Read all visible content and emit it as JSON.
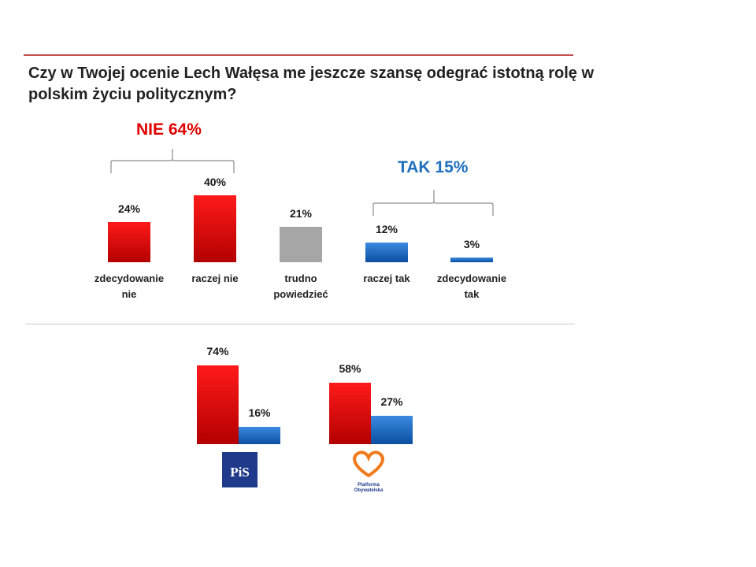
{
  "title": "Czy w Twojej ocenie Lech Wałęsa me jeszcze szansę odegrać istotną rolę w polskim życiu politycznym?",
  "groups": {
    "nie_label": "NIE 64%",
    "tak_label": "TAK 15%"
  },
  "colors": {
    "red": "#e00000",
    "blue": "#1565c0",
    "gray": "#a6a6a6",
    "nie_text": "#e00000",
    "tak_text": "#1f6fbf"
  },
  "chart_data": [
    {
      "type": "bar",
      "categories": [
        "zdecydowanie\nnie",
        "raczej nie",
        "trudno\npowiedzieć",
        "raczej tak",
        "zdecydowanie\ntak"
      ],
      "values": [
        24,
        40,
        21,
        12,
        3
      ],
      "value_labels": [
        "24%",
        "40%",
        "21%",
        "12%",
        "3%"
      ],
      "bar_colors": [
        "red",
        "red",
        "gray",
        "blue",
        "blue"
      ],
      "ylim": [
        0,
        40
      ],
      "grid": false
    },
    {
      "type": "bar",
      "groups": [
        {
          "logo": "pis-logo",
          "logo_text": "PiS",
          "values": [
            74,
            16
          ],
          "value_labels": [
            "74%",
            "16%"
          ]
        },
        {
          "logo": "platforma-obywatelska-logo",
          "logo_text": "Platforma\nObywatelska",
          "values": [
            58,
            27
          ],
          "value_labels": [
            "58%",
            "27%"
          ]
        }
      ],
      "series_colors": [
        "red",
        "blue"
      ],
      "ylim": [
        0,
        74
      ],
      "grid": false
    }
  ]
}
